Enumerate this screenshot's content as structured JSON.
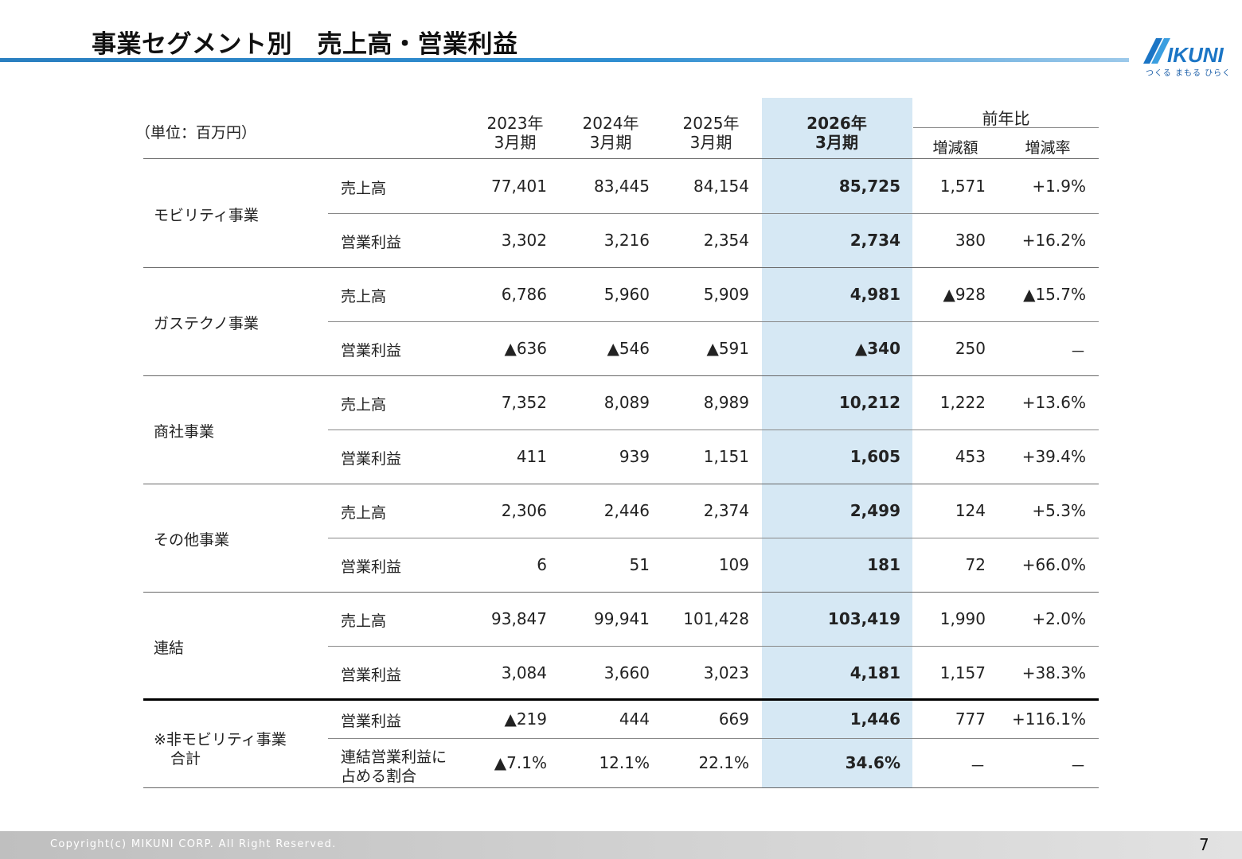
{
  "title": "事業セグメント別　売上高・営業利益",
  "logo": {
    "text": "MIKUNI",
    "tagline": "つくる まもる ひらく",
    "color": "#1b75c5"
  },
  "unit": "（単位：百万円）",
  "columns": [
    {
      "year": "2023年",
      "period": "3月期"
    },
    {
      "year": "2024年",
      "period": "3月期"
    },
    {
      "year": "2025年",
      "period": "3月期"
    },
    {
      "year": "2026年",
      "period": "3月期"
    }
  ],
  "yoy": {
    "header": "前年比",
    "diff": "増減額",
    "rate": "増減率"
  },
  "rows": [
    {
      "segment": "モビリティ事業",
      "metric": "売上高",
      "values": [
        "77,401",
        "83,445",
        "84,154",
        "85,725"
      ],
      "diff": "1,571",
      "rate": "+1.9%"
    },
    {
      "segment": "",
      "metric": "営業利益",
      "values": [
        "3,302",
        "3,216",
        "2,354",
        "2,734"
      ],
      "diff": "380",
      "rate": "+16.2%"
    },
    {
      "segment": "ガステクノ事業",
      "metric": "売上高",
      "values": [
        "6,786",
        "5,960",
        "5,909",
        "4,981"
      ],
      "diff": "▲928",
      "rate": "▲15.7%"
    },
    {
      "segment": "",
      "metric": "営業利益",
      "values": [
        "▲636",
        "▲546",
        "▲591",
        "▲340"
      ],
      "diff": "250",
      "rate": "－"
    },
    {
      "segment": "商社事業",
      "metric": "売上高",
      "values": [
        "7,352",
        "8,089",
        "8,989",
        "10,212"
      ],
      "diff": "1,222",
      "rate": "+13.6%"
    },
    {
      "segment": "",
      "metric": "営業利益",
      "values": [
        "411",
        "939",
        "1,151",
        "1,605"
      ],
      "diff": "453",
      "rate": "+39.4%"
    },
    {
      "segment": "その他事業",
      "metric": "売上高",
      "values": [
        "2,306",
        "2,446",
        "2,374",
        "2,499"
      ],
      "diff": "124",
      "rate": "+5.3%"
    },
    {
      "segment": "",
      "metric": "営業利益",
      "values": [
        "6",
        "51",
        "109",
        "181"
      ],
      "diff": "72",
      "rate": "+66.0%"
    },
    {
      "segment": "連結",
      "metric": "売上高",
      "values": [
        "93,847",
        "99,941",
        "101,428",
        "103,419"
      ],
      "diff": "1,990",
      "rate": "+2.0%"
    },
    {
      "segment": "",
      "metric": "営業利益",
      "values": [
        "3,084",
        "3,660",
        "3,023",
        "4,181"
      ],
      "diff": "1,157",
      "rate": "+38.3%"
    },
    {
      "segment": "※非モビリティ事業",
      "segment2": "合計",
      "metric": "営業利益",
      "values": [
        "▲219",
        "444",
        "669",
        "1,446"
      ],
      "diff": "777",
      "rate": "+116.1%"
    },
    {
      "segment": "",
      "metric": "連結営業利益に",
      "metric2": "占める割合",
      "values": [
        "▲7.1%",
        "12.1%",
        "22.1%",
        "34.6%"
      ],
      "diff": "－",
      "rate": "－"
    }
  ],
  "footer": {
    "copyright": "Copyright(c) MIKUNI CORP. All Right Reserved.",
    "page": "7"
  }
}
